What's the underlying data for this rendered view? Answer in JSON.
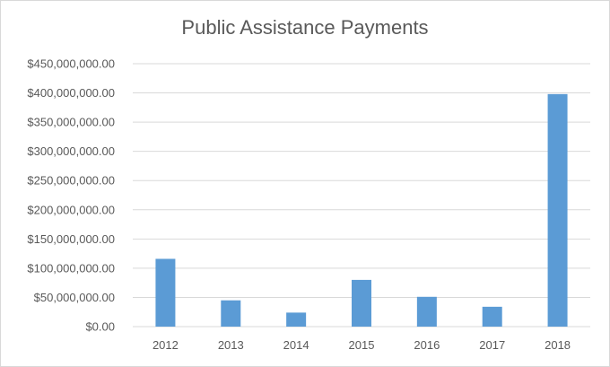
{
  "chart_data": {
    "type": "bar",
    "title": "Public Assistance Payments",
    "categories": [
      "2012",
      "2013",
      "2014",
      "2015",
      "2016",
      "2017",
      "2018"
    ],
    "values": [
      116000000,
      45000000,
      24000000,
      80000000,
      51000000,
      34000000,
      398000000
    ],
    "ylim": [
      0,
      450000000
    ],
    "ytick_values": [
      0,
      50000000,
      100000000,
      150000000,
      200000000,
      250000000,
      300000000,
      350000000,
      400000000,
      450000000
    ],
    "ytick_labels": [
      "$0.00",
      "$50,000,000.00",
      "$100,000,000.00",
      "$150,000,000.00",
      "$200,000,000.00",
      "$250,000,000.00",
      "$300,000,000.00",
      "$350,000,000.00",
      "$400,000,000.00",
      "$450,000,000.00"
    ],
    "xlabel": "",
    "ylabel": "",
    "grid": true,
    "legend": false,
    "colors": {
      "bar": "#5b9bd5",
      "grid": "#d9d9d9",
      "text": "#595959"
    }
  }
}
